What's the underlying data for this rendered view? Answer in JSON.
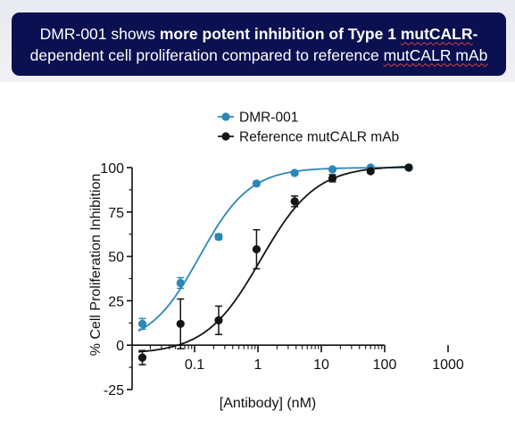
{
  "header": {
    "title_part1": "DMR-001 shows ",
    "title_bold": "more potent inhibition of Type 1",
    "title_flag1": "mutCALR",
    "title_part2": "-",
    "subtitle_part1": "dependent cell proliferation compared to reference ",
    "subtitle_flag2": "mutCALR mAb"
  },
  "colors": {
    "banner_bg": "#0a1050",
    "series_dmr": "#2a87b8",
    "series_ref": "#141414"
  },
  "chart_data": {
    "type": "scatter",
    "xlabel": "[Antibody] (nM)",
    "ylabel": "% Cell Proliferation Inhibition",
    "xscale": "log",
    "xlim": [
      0.01,
      1000
    ],
    "ylim": [
      -25,
      100
    ],
    "x_ticks": [
      "0.1",
      "1",
      "10",
      "100",
      "1000"
    ],
    "y_ticks": [
      "-25",
      "0",
      "25",
      "50",
      "75",
      "100"
    ],
    "legend_position": "top-left",
    "series": [
      {
        "name": "DMR-001",
        "marker": "circle",
        "points": [
          {
            "x": 0.015,
            "y": 12,
            "err": 3
          },
          {
            "x": 0.06,
            "y": 35,
            "err": 3
          },
          {
            "x": 0.24,
            "y": 61,
            "err": 1.5
          },
          {
            "x": 0.95,
            "y": 91,
            "err": 1
          },
          {
            "x": 3.8,
            "y": 97,
            "err": 1
          },
          {
            "x": 15,
            "y": 99,
            "err": 0.5
          },
          {
            "x": 60,
            "y": 100,
            "err": 0.5
          },
          {
            "x": 240,
            "y": 100,
            "err": 0.5
          }
        ],
        "fit": {
          "bottom": 0,
          "top": 100,
          "ec50": 0.12,
          "hill": 1.1
        }
      },
      {
        "name": "Reference mutCALR mAb",
        "marker": "circle",
        "points": [
          {
            "x": 0.015,
            "y": -7,
            "err": 4
          },
          {
            "x": 0.06,
            "y": 12,
            "err": 14
          },
          {
            "x": 0.24,
            "y": 14,
            "err": 8
          },
          {
            "x": 0.95,
            "y": 54,
            "err": 11
          },
          {
            "x": 3.8,
            "y": 81,
            "err": 3
          },
          {
            "x": 15,
            "y": 94,
            "err": 2
          },
          {
            "x": 60,
            "y": 98,
            "err": 1
          },
          {
            "x": 240,
            "y": 100,
            "err": 1
          }
        ],
        "fit": {
          "bottom": -5,
          "top": 101,
          "ec50": 1.1,
          "hill": 1.0
        }
      }
    ]
  }
}
